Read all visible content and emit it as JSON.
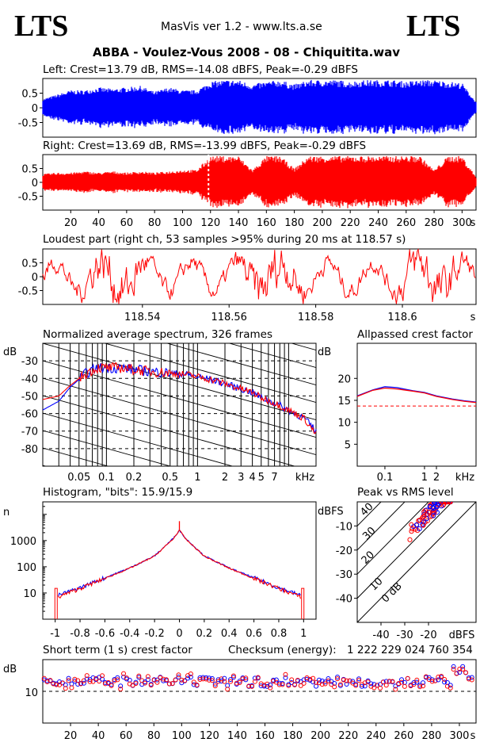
{
  "header": {
    "logo_left": "LTS",
    "logo_right": "LTS",
    "app": "MasVis ver 1.2 - www.lts.a.se",
    "track": "ABBA - Voulez-Vous 2008 - 08 - Chiquitita.wav"
  },
  "colors": {
    "left": "#0000ff",
    "right": "#ff0000"
  },
  "chart_data": [
    {
      "id": "waveform-left",
      "type": "area",
      "title": "Left: Crest=13.79 dB, RMS=-14.08 dBFS, Peak=-0.29 dBFS",
      "yticks": [
        "0.5",
        "0",
        "-0.5"
      ],
      "ylim": [
        -1,
        1
      ],
      "envelope": {
        "x": [
          0,
          10,
          20,
          30,
          40,
          50,
          60,
          70,
          80,
          90,
          100,
          110,
          120,
          130,
          140,
          150,
          160,
          170,
          180,
          190,
          200,
          210,
          220,
          230,
          240,
          250,
          260,
          270,
          280,
          290,
          300,
          310
        ],
        "y": [
          0.3,
          0.45,
          0.6,
          0.6,
          0.7,
          0.65,
          0.7,
          0.75,
          0.55,
          0.7,
          0.6,
          0.6,
          0.9,
          0.95,
          0.95,
          0.8,
          0.9,
          0.95,
          0.8,
          0.95,
          0.95,
          0.95,
          0.9,
          0.95,
          0.95,
          0.95,
          0.9,
          0.95,
          0.95,
          0.9,
          0.85,
          0.2
        ]
      }
    },
    {
      "id": "waveform-right",
      "type": "area",
      "title": "Right: Crest=13.69 dB, RMS=-13.99 dBFS, Peak=-0.29 dBFS",
      "yticks": [
        "0.5",
        "0",
        "-0.5"
      ],
      "ylim": [
        -1,
        1
      ],
      "xticks": [
        "20",
        "40",
        "60",
        "80",
        "100",
        "120",
        "140",
        "160",
        "180",
        "200",
        "220",
        "240",
        "260",
        "280",
        "300"
      ],
      "xunit": "s",
      "marker_s": 118.57,
      "envelope": {
        "x": [
          0,
          10,
          20,
          30,
          40,
          50,
          60,
          70,
          80,
          90,
          100,
          110,
          120,
          130,
          140,
          150,
          160,
          170,
          180,
          190,
          200,
          210,
          220,
          230,
          240,
          250,
          260,
          270,
          280,
          290,
          300,
          310
        ],
        "y": [
          0.3,
          0.35,
          0.35,
          0.4,
          0.35,
          0.4,
          0.35,
          0.4,
          0.35,
          0.4,
          0.45,
          0.45,
          0.95,
          0.95,
          0.95,
          0.45,
          0.95,
          0.95,
          0.5,
          0.95,
          0.95,
          0.95,
          0.95,
          0.95,
          0.95,
          0.95,
          0.95,
          0.95,
          0.45,
          0.95,
          0.95,
          0.2
        ]
      }
    },
    {
      "id": "loudest-part",
      "type": "line",
      "title": "Loudest part (right ch, 53 samples >95% during 20 ms at 118.57 s)",
      "yticks": [
        "0.5",
        "0",
        "-0.5"
      ],
      "ylim": [
        -1,
        1
      ],
      "xticks": [
        "118.54",
        "118.56",
        "118.58",
        "118.6"
      ],
      "xunit": "s",
      "xlim": [
        118.517,
        118.617
      ]
    },
    {
      "id": "avg-spectrum",
      "type": "line",
      "title": "Normalized average spectrum, 326 frames",
      "ylabel": "dB",
      "yticks": [
        "-30",
        "-40",
        "-50",
        "-60",
        "-70",
        "-80"
      ],
      "ylim": [
        -90,
        -20
      ],
      "xticks": [
        "0.05",
        "0.1",
        "0.2",
        "0.5",
        "1",
        "2",
        "3",
        "4",
        "5",
        "7"
      ],
      "xunit": "kHz",
      "xscale": "log",
      "xlim": [
        0.02,
        20
      ],
      "series": [
        {
          "x": [
            0.02,
            0.03,
            0.04,
            0.06,
            0.08,
            0.1,
            0.15,
            0.2,
            0.3,
            0.5,
            0.8,
            1,
            1.5,
            2,
            3,
            4,
            5,
            7,
            10,
            15,
            20
          ],
          "y": [
            -58,
            -53,
            -45,
            -37,
            -34,
            -34,
            -34,
            -35,
            -36,
            -37,
            -38,
            -39,
            -41,
            -43,
            -46,
            -48,
            -51,
            -54,
            -58,
            -63,
            -70
          ]
        },
        {
          "x": [
            0.02,
            0.03,
            0.04,
            0.06,
            0.08,
            0.1,
            0.15,
            0.2,
            0.3,
            0.5,
            0.8,
            1,
            1.5,
            2,
            3,
            4,
            5,
            7,
            10,
            15,
            20
          ],
          "y": [
            -52,
            -50,
            -44,
            -37,
            -34,
            -34,
            -34,
            -35,
            -36,
            -37,
            -38,
            -39,
            -41,
            -43,
            -46,
            -48,
            -51,
            -54,
            -58,
            -63,
            -72
          ]
        }
      ]
    },
    {
      "id": "allpassed-crest",
      "type": "line",
      "title": "Allpassed crest factor",
      "ylabel": "dB",
      "yticks": [
        "20",
        "15",
        "10",
        "5"
      ],
      "ylim": [
        0,
        28
      ],
      "xticks": [
        "0.1",
        "1",
        "2"
      ],
      "xunit": "kHz",
      "xscale": "log",
      "xlim": [
        0.02,
        20
      ],
      "reference_db": 13.7,
      "series": [
        {
          "x": [
            0.02,
            0.05,
            0.1,
            0.2,
            0.5,
            1,
            2,
            5,
            10,
            20
          ],
          "y": [
            16.0,
            17.4,
            18.1,
            17.9,
            17.2,
            16.8,
            16.0,
            15.3,
            14.9,
            14.6
          ]
        },
        {
          "x": [
            0.02,
            0.05,
            0.1,
            0.2,
            0.5,
            1,
            2,
            5,
            10,
            20
          ],
          "y": [
            15.9,
            17.3,
            17.8,
            17.6,
            17.1,
            16.7,
            15.9,
            15.2,
            14.8,
            14.5
          ]
        }
      ]
    },
    {
      "id": "histogram",
      "type": "line",
      "title": "Histogram, \"bits\": 15.9/15.9",
      "ylabel": "n",
      "yticks": [
        "1000",
        "100",
        "10"
      ],
      "yscale": "log",
      "ylim": [
        1,
        30000
      ],
      "xticks": [
        "-1",
        "-0.8",
        "-0.6",
        "-0.4",
        "-0.2",
        "0",
        "0.2",
        "0.4",
        "0.6",
        "0.8",
        "1"
      ],
      "xlim": [
        -1.1,
        1.1
      ],
      "series": [
        {
          "x": [
            -0.98,
            -0.8,
            -0.6,
            -0.4,
            -0.2,
            -0.05,
            0,
            0.05,
            0.2,
            0.4,
            0.6,
            0.8,
            0.98
          ],
          "y": [
            8,
            16,
            38,
            90,
            260,
            1200,
            2500,
            1200,
            260,
            90,
            38,
            16,
            8
          ]
        },
        {
          "x": [
            -0.98,
            -0.8,
            -0.6,
            -0.4,
            -0.2,
            -0.05,
            0,
            0.05,
            0.2,
            0.4,
            0.6,
            0.8,
            0.98
          ],
          "y": [
            7,
            15,
            36,
            88,
            255,
            1150,
            2500,
            1150,
            255,
            88,
            36,
            15,
            7
          ]
        }
      ]
    },
    {
      "id": "peak-vs-rms",
      "type": "scatter",
      "title": "Peak vs RMS level",
      "ylabel": "dBFS",
      "yticks": [
        "-10",
        "-20",
        "-30",
        "-40"
      ],
      "ylim": [
        -50,
        0
      ],
      "xticks": [
        "-40",
        "-30",
        "-20"
      ],
      "xlabel": "dBFS",
      "xlim": [
        -50,
        0
      ],
      "crest_lines": [
        "40",
        "30",
        "20",
        "10",
        "0 dB"
      ]
    },
    {
      "id": "short-term-crest",
      "type": "scatter",
      "title": "Short term (1 s) crest factor",
      "checksum_label": "Checksum (energy):",
      "checksum": "1 222 229 024 760 354",
      "ylabel": "dB",
      "yticks": [
        "10"
      ],
      "ylim": [
        0,
        20
      ],
      "xticks": [
        "20",
        "40",
        "60",
        "80",
        "100",
        "120",
        "140",
        "160",
        "180",
        "200",
        "220",
        "240",
        "260",
        "280",
        "300"
      ],
      "xunit": "s",
      "xlim": [
        0,
        312
      ]
    }
  ]
}
